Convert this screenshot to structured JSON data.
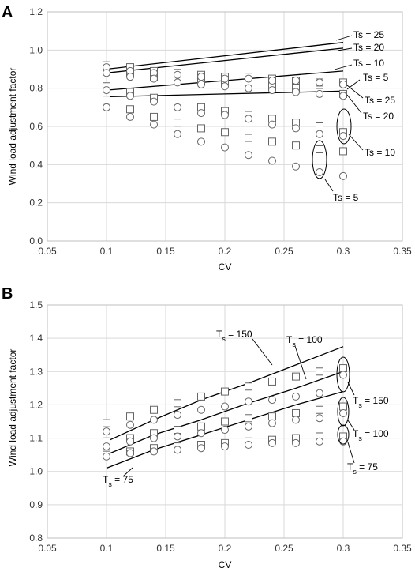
{
  "chart_data": [
    {
      "panel": "A",
      "type": "scatter",
      "xlabel": "CV",
      "ylabel": "Wind load adjustment factor",
      "xlim": [
        0.05,
        0.35
      ],
      "ylim": [
        0.0,
        1.2
      ],
      "x_ticks": [
        "0.05",
        "0.1",
        "0.15",
        "0.2",
        "0.25",
        "0.3",
        "0.35"
      ],
      "y_ticks": [
        "0.0",
        "0.2",
        "0.4",
        "0.6",
        "0.8",
        "1.0",
        "1.2"
      ],
      "grid": true,
      "x": [
        0.1,
        0.12,
        0.14,
        0.16,
        0.18,
        0.2,
        0.22,
        0.24,
        0.26,
        0.28,
        0.3
      ],
      "lines": [
        {
          "label": "Ts = 25",
          "x": [
            0.1,
            0.3
          ],
          "y": [
            0.9,
            1.04
          ]
        },
        {
          "label": "Ts = 20",
          "x": [
            0.1,
            0.3
          ],
          "y": [
            0.88,
            1.01
          ]
        },
        {
          "label": "Ts = 10",
          "x": [
            0.1,
            0.3
          ],
          "y": [
            0.79,
            0.89
          ]
        },
        {
          "label": "Ts = 5",
          "x": [
            0.1,
            0.3
          ],
          "y": [
            0.755,
            0.785
          ]
        }
      ],
      "square_series": [
        {
          "Ts": "25",
          "y": [
            0.92,
            0.91,
            0.89,
            0.88,
            0.87,
            0.86,
            0.86,
            0.85,
            0.84,
            0.83,
            0.83
          ]
        },
        {
          "Ts": "20",
          "y": [
            0.9,
            0.88,
            0.86,
            0.85,
            0.84,
            0.83,
            0.82,
            0.81,
            0.8,
            0.78,
            0.77
          ]
        },
        {
          "Ts": "10",
          "y": [
            0.81,
            0.78,
            0.75,
            0.72,
            0.7,
            0.68,
            0.66,
            0.64,
            0.62,
            0.6,
            0.57
          ]
        },
        {
          "Ts": "5",
          "y": [
            0.74,
            0.69,
            0.65,
            0.62,
            0.59,
            0.57,
            0.54,
            0.52,
            0.5,
            0.48,
            0.47
          ]
        }
      ],
      "circle_series": [
        {
          "Ts": "25",
          "y": [
            0.91,
            0.89,
            0.88,
            0.87,
            0.86,
            0.85,
            0.85,
            0.84,
            0.84,
            0.83,
            0.82
          ]
        },
        {
          "Ts": "20",
          "y": [
            0.88,
            0.86,
            0.85,
            0.83,
            0.82,
            0.81,
            0.8,
            0.79,
            0.78,
            0.77,
            0.76
          ]
        },
        {
          "Ts": "10",
          "y": [
            0.79,
            0.76,
            0.73,
            0.7,
            0.67,
            0.66,
            0.64,
            0.61,
            0.59,
            0.56,
            0.55
          ]
        },
        {
          "Ts": "5",
          "y": [
            0.7,
            0.65,
            0.61,
            0.56,
            0.52,
            0.49,
            0.45,
            0.42,
            0.39,
            0.36,
            0.34
          ]
        }
      ],
      "annotations": [
        "Ts = 25",
        "Ts = 20",
        "Ts = 10",
        "Ts = 5",
        "Ts = 25",
        "Ts = 20",
        "Ts = 10",
        "Ts = 5"
      ]
    },
    {
      "panel": "B",
      "type": "scatter",
      "xlabel": "CV",
      "ylabel": "Wind load adjustment factor",
      "xlim": [
        0.05,
        0.35
      ],
      "ylim": [
        0.8,
        1.5
      ],
      "x_ticks": [
        "0.05",
        "0.1",
        "0.15",
        "0.2",
        "0.25",
        "0.3",
        "0.35"
      ],
      "y_ticks": [
        "0.8",
        "0.9",
        "1.0",
        "1.1",
        "1.2",
        "1.3",
        "1.4",
        "1.5"
      ],
      "grid": true,
      "x": [
        0.1,
        0.12,
        0.14,
        0.16,
        0.18,
        0.2,
        0.22,
        0.24,
        0.26,
        0.28,
        0.3
      ],
      "lines": [
        {
          "label": "Ts = 150",
          "x": [
            0.1,
            0.14,
            0.18,
            0.22,
            0.26,
            0.3
          ],
          "y": [
            1.09,
            1.155,
            1.215,
            1.265,
            1.32,
            1.375
          ]
        },
        {
          "label": "Ts = 100",
          "x": [
            0.1,
            0.14,
            0.18,
            0.22,
            0.26,
            0.3
          ],
          "y": [
            1.05,
            1.11,
            1.155,
            1.205,
            1.25,
            1.3
          ]
        },
        {
          "label": "Ts = 75",
          "x": [
            0.1,
            0.14,
            0.18,
            0.22,
            0.26,
            0.3
          ],
          "y": [
            1.01,
            1.065,
            1.11,
            1.155,
            1.2,
            1.24
          ]
        }
      ],
      "square_series": [
        {
          "Ts": "150",
          "y": [
            1.145,
            1.165,
            1.185,
            1.205,
            1.225,
            1.24,
            1.255,
            1.27,
            1.285,
            1.3,
            1.31
          ]
        },
        {
          "Ts": "100",
          "y": [
            1.09,
            1.1,
            1.115,
            1.125,
            1.135,
            1.15,
            1.16,
            1.165,
            1.175,
            1.185,
            1.195
          ]
        },
        {
          "Ts": "75",
          "y": [
            1.05,
            1.06,
            1.07,
            1.075,
            1.08,
            1.085,
            1.09,
            1.095,
            1.1,
            1.105,
            1.105
          ]
        }
      ],
      "circle_series": [
        {
          "Ts": "150",
          "y": [
            1.12,
            1.14,
            1.155,
            1.17,
            1.185,
            1.195,
            1.21,
            1.215,
            1.225,
            1.235,
            1.29
          ]
        },
        {
          "Ts": "100",
          "y": [
            1.075,
            1.09,
            1.1,
            1.105,
            1.115,
            1.125,
            1.135,
            1.145,
            1.155,
            1.16,
            1.175
          ]
        },
        {
          "Ts": "75",
          "y": [
            1.045,
            1.055,
            1.06,
            1.065,
            1.07,
            1.075,
            1.08,
            1.085,
            1.085,
            1.09,
            1.09
          ]
        }
      ],
      "annotations": [
        "150",
        "100",
        "75",
        "150",
        "100",
        "75"
      ]
    }
  ],
  "panel_letters": {
    "a": "A",
    "b": "B"
  }
}
